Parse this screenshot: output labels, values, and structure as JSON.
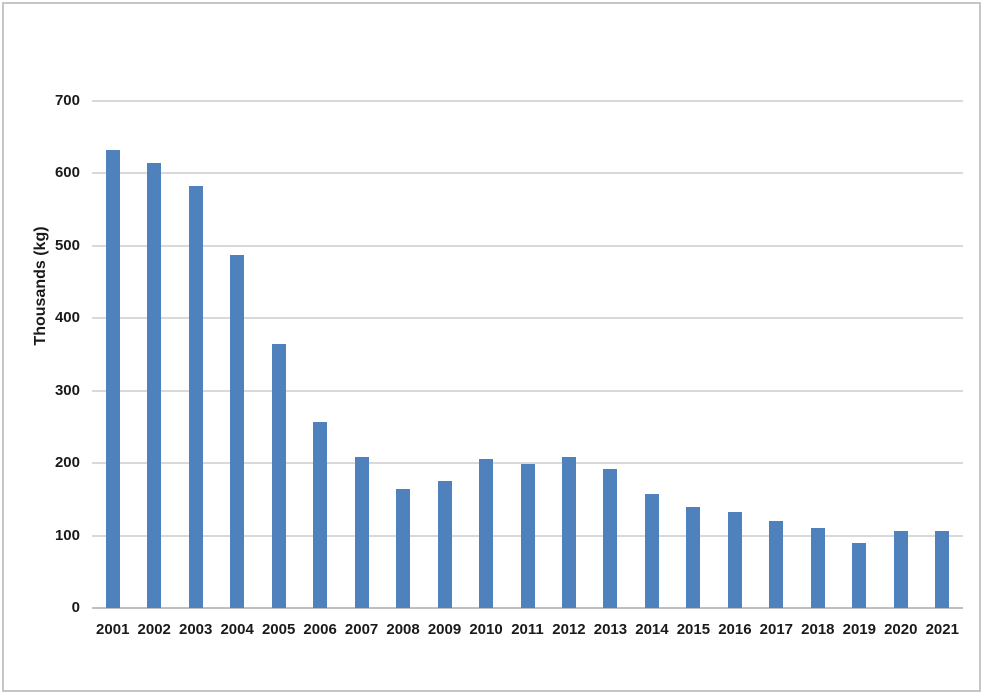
{
  "chart_data": {
    "type": "bar",
    "title": "",
    "xlabel": "",
    "ylabel": "Thousands (kg)",
    "categories": [
      "2001",
      "2002",
      "2003",
      "2004",
      "2005",
      "2006",
      "2007",
      "2008",
      "2009",
      "2010",
      "2011",
      "2012",
      "2013",
      "2014",
      "2015",
      "2016",
      "2017",
      "2018",
      "2019",
      "2020",
      "2021"
    ],
    "values": [
      632,
      614,
      583,
      488,
      365,
      257,
      208,
      165,
      176,
      206,
      199,
      209,
      192,
      158,
      140,
      132,
      120,
      110,
      90,
      106,
      107
    ],
    "ylim": [
      0,
      700
    ],
    "yticks": [
      0,
      100,
      200,
      300,
      400,
      500,
      600,
      700
    ],
    "grid": true,
    "legend_position": "none",
    "bar_color": "#4F81BD",
    "gridline_color": "#D9D9D9",
    "axis_line_color": "#BFBFBF",
    "text_color": "#1A1A1A",
    "frame_border_color": "#C6C6C6",
    "background_color": "#FFFFFF"
  }
}
